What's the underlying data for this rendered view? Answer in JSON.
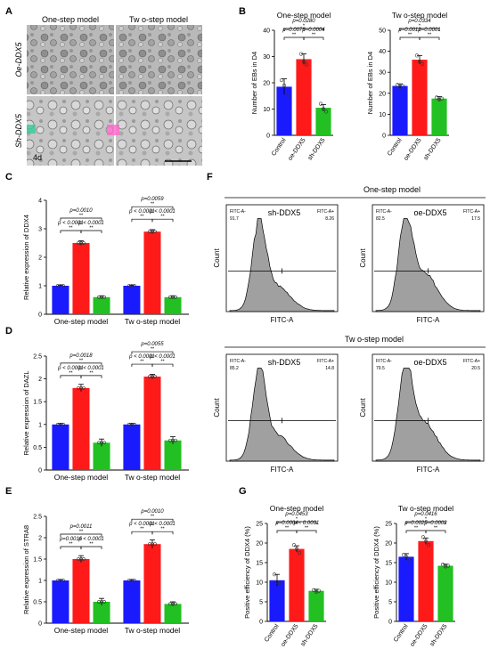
{
  "panel_labels": {
    "A": "A",
    "B": "B",
    "C": "C",
    "D": "D",
    "E": "E",
    "F": "F",
    "G": "G"
  },
  "micrograph": {
    "col_one": "One-step model",
    "col_two": "Tw o-step model",
    "row_oe": "Oe-DDX5",
    "row_sh": "Sh-DDX5",
    "day_label": "4d"
  },
  "flow": {
    "section_one": "One-step model",
    "section_two": "Tw o-step model",
    "axis_x": "FITC-A",
    "axis_y": "Count",
    "gate_label": "FITC-A+",
    "gate_left_label": "FITC-A-",
    "plots": [
      {
        "title": "sh-DDX5",
        "left_pct": "91.7",
        "right_pct": "8.26"
      },
      {
        "title": "oe-DDX5",
        "left_pct": "82.5",
        "right_pct": "17.5"
      },
      {
        "title": "sh-DDX5",
        "left_pct": "85.2",
        "right_pct": "14.8"
      },
      {
        "title": "oe-DDX5",
        "left_pct": "79.5",
        "right_pct": "20.5"
      }
    ]
  },
  "colors": {
    "control": "#1a1aff",
    "oe": "#ff1a1a",
    "sh": "#22c022",
    "highlight": "#ff66cc"
  },
  "chart_data": [
    {
      "id": "B1",
      "type": "bar",
      "title": "One-step model",
      "categories": [
        "Control",
        "oe-DDX5",
        "sh-DDX5"
      ],
      "values": [
        18.5,
        29,
        10.5
      ],
      "points": [
        [
          21,
          19,
          15
        ],
        [
          31,
          28,
          27
        ],
        [
          12,
          10,
          9
        ]
      ],
      "errors": [
        3,
        2,
        1.2
      ],
      "ylabel": "Number of EBs in D4",
      "ylim": [
        0,
        40
      ],
      "yticks": [
        0,
        10,
        20,
        30,
        40
      ],
      "brackets": [
        {
          "from": 0,
          "to": 2,
          "label": "p=0.0280",
          "stars": "*",
          "level": 2
        },
        {
          "from": 0,
          "to": 1,
          "label": "p=0.0073",
          "stars": "**",
          "level": 1
        },
        {
          "from": 1,
          "to": 2,
          "label": "p=0.0004",
          "stars": "**",
          "level": 1
        }
      ]
    },
    {
      "id": "B2",
      "type": "bar",
      "title": "Tw o-step model",
      "categories": [
        "Control",
        "oe-DDX5",
        "sh-DDX5"
      ],
      "values": [
        23.5,
        36,
        17.5
      ],
      "points": [
        [
          24,
          23,
          23.5
        ],
        [
          38,
          35,
          34
        ],
        [
          18,
          17,
          17.5
        ]
      ],
      "errors": [
        1,
        2,
        1
      ],
      "ylabel": "Number of EBs in D4",
      "ylim": [
        0,
        50
      ],
      "yticks": [
        0,
        10,
        20,
        30,
        40,
        50
      ],
      "brackets": [
        {
          "from": 0,
          "to": 2,
          "label": "p=0.0334",
          "stars": "*",
          "level": 2
        },
        {
          "from": 0,
          "to": 1,
          "label": "p=0.0012",
          "stars": "**",
          "level": 1
        },
        {
          "from": 1,
          "to": 2,
          "label": "p=0.0001",
          "stars": "**",
          "level": 1
        }
      ]
    },
    {
      "id": "C",
      "type": "bar",
      "groups": [
        "One-step model",
        "Tw o-step model"
      ],
      "values": [
        [
          1,
          2.5,
          0.6
        ],
        [
          1,
          2.9,
          0.6
        ]
      ],
      "errors": [
        [
          0.02,
          0.08,
          0.05
        ],
        [
          0.02,
          0.07,
          0.05
        ]
      ],
      "ylabel": "Relative expression of DDX4",
      "ylim": [
        0,
        4
      ],
      "yticks": [
        0,
        1,
        2,
        3,
        4
      ],
      "brackets": [
        [
          {
            "from": 0,
            "to": 2,
            "label": "p=0.0010",
            "stars": "**",
            "level": 2
          },
          {
            "from": 0,
            "to": 1,
            "label": "p < 0.0001",
            "stars": "**",
            "level": 1
          },
          {
            "from": 1,
            "to": 2,
            "label": "p < 0.0001",
            "stars": "**",
            "level": 1
          }
        ],
        [
          {
            "from": 0,
            "to": 2,
            "label": "p=0.0059",
            "stars": "**",
            "level": 2
          },
          {
            "from": 0,
            "to": 1,
            "label": "p < 0.0001",
            "stars": "**",
            "level": 1
          },
          {
            "from": 1,
            "to": 2,
            "label": "p < 0.0001",
            "stars": "**",
            "level": 1
          }
        ]
      ]
    },
    {
      "id": "D",
      "type": "bar",
      "groups": [
        "One-step model",
        "Tw o-step model"
      ],
      "values": [
        [
          1,
          1.8,
          0.6
        ],
        [
          1,
          2.05,
          0.65
        ]
      ],
      "errors": [
        [
          0.02,
          0.08,
          0.08
        ],
        [
          0.02,
          0.05,
          0.08
        ]
      ],
      "ylabel": "Relative expression of DAZL",
      "ylim": [
        0,
        2.5
      ],
      "yticks": [
        0,
        0.5,
        1.0,
        1.5,
        2.0,
        2.5
      ],
      "brackets": [
        [
          {
            "from": 0,
            "to": 2,
            "label": "p=0.0018",
            "stars": "**",
            "level": 2
          },
          {
            "from": 0,
            "to": 1,
            "label": "p < 0.0001",
            "stars": "**",
            "level": 1
          },
          {
            "from": 1,
            "to": 2,
            "label": "p < 0.0001",
            "stars": "**",
            "level": 1
          }
        ],
        [
          {
            "from": 0,
            "to": 2,
            "label": "p=0.0055",
            "stars": "**",
            "level": 2
          },
          {
            "from": 0,
            "to": 1,
            "label": "p < 0.0001",
            "stars": "**",
            "level": 1
          },
          {
            "from": 1,
            "to": 2,
            "label": "p < 0.0001",
            "stars": "**",
            "level": 1
          }
        ]
      ]
    },
    {
      "id": "E",
      "type": "bar",
      "groups": [
        "One-step model",
        "Tw o-step model"
      ],
      "values": [
        [
          1,
          1.5,
          0.5
        ],
        [
          1,
          1.85,
          0.45
        ]
      ],
      "errors": [
        [
          0.02,
          0.08,
          0.08
        ],
        [
          0.02,
          0.1,
          0.05
        ]
      ],
      "ylabel": "Relative expression of STRA8",
      "ylim": [
        0,
        2.5
      ],
      "yticks": [
        0,
        0.5,
        1.0,
        1.5,
        2.0,
        2.5
      ],
      "brackets": [
        [
          {
            "from": 0,
            "to": 2,
            "label": "p=0.0011",
            "stars": "**",
            "level": 2
          },
          {
            "from": 0,
            "to": 1,
            "label": "p=0.0016",
            "stars": "**",
            "level": 1
          },
          {
            "from": 1,
            "to": 2,
            "label": "p < 0.0001",
            "stars": "**",
            "level": 1
          }
        ],
        [
          {
            "from": 0,
            "to": 2,
            "label": "p=0.0010",
            "stars": "**",
            "level": 2
          },
          {
            "from": 0,
            "to": 1,
            "label": "p < 0.0001",
            "stars": "**",
            "level": 1
          },
          {
            "from": 1,
            "to": 2,
            "label": "p < 0.0001",
            "stars": "**",
            "level": 1
          }
        ]
      ]
    },
    {
      "id": "G1",
      "type": "bar",
      "title": "One-step model",
      "categories": [
        "Control",
        "oe-DDX5",
        "sh-DDX5"
      ],
      "values": [
        10.5,
        18.5,
        7.8
      ],
      "points": [
        [
          12,
          10,
          9.5
        ],
        [
          19.5,
          18.5,
          17.5
        ],
        [
          8,
          7.5,
          7.8
        ]
      ],
      "errors": [
        1.5,
        0.8,
        0.4
      ],
      "ylabel": "Positive efficiency of DDX4 (%)",
      "ylim": [
        0,
        25
      ],
      "yticks": [
        0,
        5,
        10,
        15,
        20,
        25
      ],
      "brackets": [
        {
          "from": 0,
          "to": 2,
          "label": "p=0.0453",
          "stars": "*",
          "level": 2
        },
        {
          "from": 0,
          "to": 1,
          "label": "p=0.0004",
          "stars": "**",
          "level": 1
        },
        {
          "from": 1,
          "to": 2,
          "label": "p < 0.0001",
          "stars": "**",
          "level": 1
        }
      ]
    },
    {
      "id": "G2",
      "type": "bar",
      "title": "Tw o-step model",
      "categories": [
        "Control",
        "oe-DDX5",
        "sh-DDX5"
      ],
      "values": [
        16.5,
        20.5,
        14.2
      ],
      "points": [
        [
          17,
          16.5,
          16
        ],
        [
          21.5,
          20.5,
          19.5
        ],
        [
          14.5,
          14,
          14.2
        ]
      ],
      "errors": [
        0.8,
        0.8,
        0.4
      ],
      "ylabel": "Positive efficiency of DDX4 (%)",
      "ylim": [
        0,
        25
      ],
      "yticks": [
        0,
        5,
        10,
        15,
        20,
        25
      ],
      "brackets": [
        {
          "from": 0,
          "to": 2,
          "label": "p=0.0416",
          "stars": "*",
          "level": 2
        },
        {
          "from": 0,
          "to": 1,
          "label": "p=0.0025",
          "stars": "**",
          "level": 1
        },
        {
          "from": 1,
          "to": 2,
          "label": "p=0.0002",
          "stars": "**",
          "level": 1
        }
      ]
    }
  ]
}
